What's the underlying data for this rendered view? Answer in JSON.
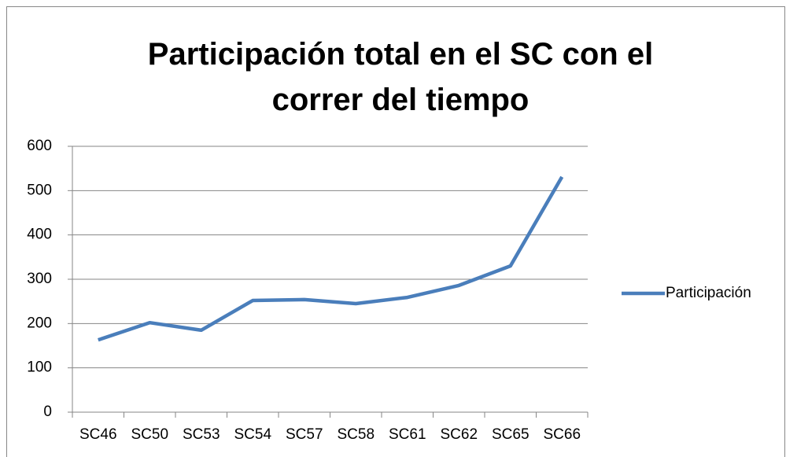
{
  "chart_data": {
    "type": "line",
    "title": "Participación total en el SC con el correr del tiempo",
    "categories": [
      "SC46",
      "SC50",
      "SC53",
      "SC54",
      "SC57",
      "SC58",
      "SC61",
      "SC62",
      "SC65",
      "SC66"
    ],
    "series": [
      {
        "name": "Participación",
        "color": "#4a7ebb",
        "values": [
          163,
          202,
          185,
          252,
          254,
          245,
          259,
          286,
          330,
          531
        ]
      }
    ],
    "ylim": [
      0,
      600
    ],
    "yticks": [
      0,
      100,
      200,
      300,
      400,
      500,
      600
    ],
    "grid": true,
    "legend": "right"
  }
}
